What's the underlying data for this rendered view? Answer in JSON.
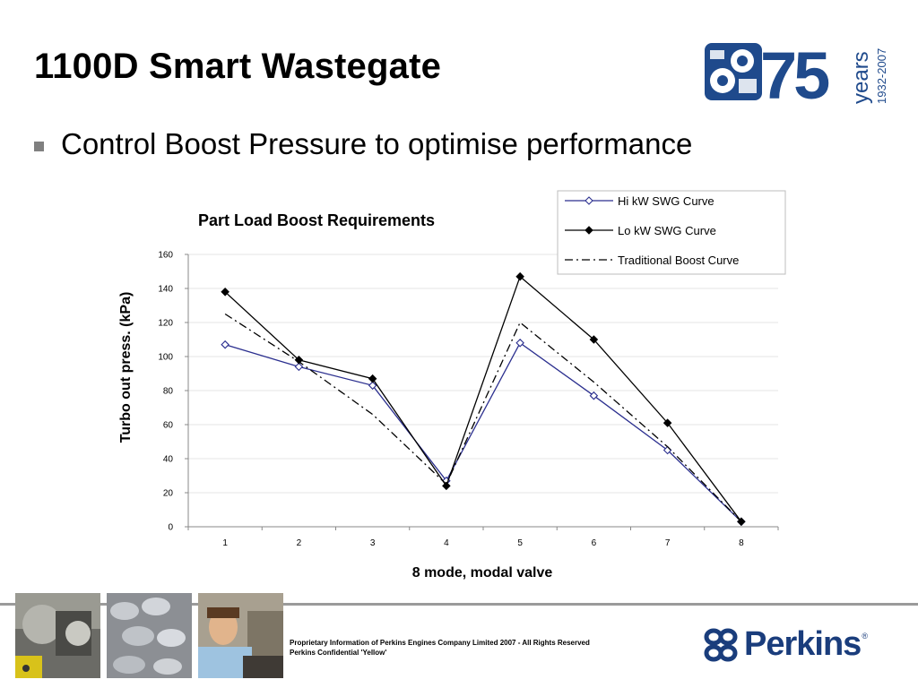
{
  "slide": {
    "title": "1100D Smart Wastegate",
    "bullet": "Control Boost Pressure to optimise performance"
  },
  "logo_anniversary": {
    "number": "75",
    "word": "years",
    "years_range": "1932-2007",
    "color": "#1f4a8c"
  },
  "chart_data": {
    "type": "line",
    "title": "Part Load Boost Requirements",
    "xlabel": "8 mode, modal valve",
    "ylabel": "Turbo out press. (kPa)",
    "x": [
      1,
      2,
      3,
      4,
      5,
      6,
      7,
      8
    ],
    "xticks": [
      "1",
      "2",
      "3",
      "4",
      "5",
      "6",
      "7",
      "8"
    ],
    "ylim": [
      0,
      160
    ],
    "yticks": [
      "0",
      "20",
      "40",
      "60",
      "80",
      "100",
      "120",
      "140",
      "160"
    ],
    "grid": true,
    "legend_position": "top-right",
    "series": [
      {
        "name": "Hi kW SWG Curve",
        "values": [
          107,
          94,
          83,
          27,
          108,
          77,
          45,
          3
        ],
        "color": "#2b2f8f",
        "marker": "diamond-open",
        "dash": "solid"
      },
      {
        "name": "Lo kW SWG Curve",
        "values": [
          138,
          98,
          87,
          24,
          147,
          110,
          61,
          3
        ],
        "color": "#000000",
        "marker": "diamond-filled",
        "dash": "solid"
      },
      {
        "name": "Traditional Boost Curve",
        "values": [
          125,
          97,
          66,
          25,
          120,
          85,
          47,
          3
        ],
        "color": "#000000",
        "marker": "none",
        "dash": "dash-dot"
      }
    ]
  },
  "footer": {
    "notice_line1": "Proprietary Information of Perkins Engines Company Limited 2007 - All Rights Reserved",
    "notice_line2": "Perkins Confidential 'Yellow'",
    "brand": "Perkins",
    "brand_mark": "®",
    "brand_color": "#1a3d7c"
  },
  "photos": [
    "engine-photo",
    "pistons-photo",
    "technician-photo"
  ]
}
